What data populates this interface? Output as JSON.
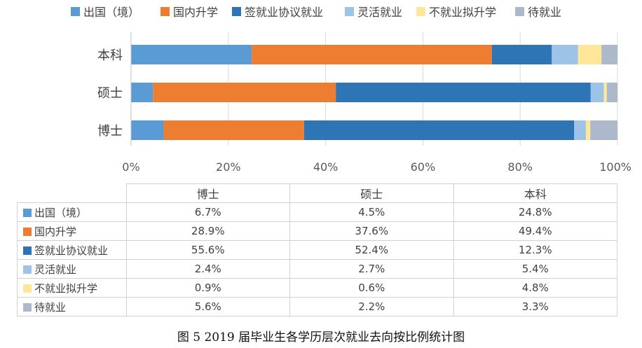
{
  "chart_data": {
    "type": "bar",
    "orientation": "horizontal",
    "stacked": "percent",
    "categories": [
      "本科",
      "硕士",
      "博士"
    ],
    "series": [
      {
        "name": "出国（境）",
        "color": "#5b9bd5",
        "values": [
          24.8,
          4.5,
          6.7
        ],
        "labels": [
          "24.8%",
          "4.5%",
          "6.7%"
        ]
      },
      {
        "name": "国内升学",
        "color": "#ed7d31",
        "values": [
          49.4,
          37.6,
          28.9
        ],
        "labels": [
          "49.4%",
          "37.6%",
          "28.9%"
        ]
      },
      {
        "name": "签就业协议就业",
        "color": "#2e75b6",
        "values": [
          12.3,
          52.4,
          55.6
        ],
        "labels": [
          "12.3%",
          "52.4%",
          "55.6%"
        ]
      },
      {
        "name": "灵活就业",
        "color": "#9dc3e6",
        "values": [
          5.4,
          2.7,
          2.4
        ],
        "labels": [
          "5.4%",
          "2.7%",
          "2.4%"
        ]
      },
      {
        "name": "不就业拟升学",
        "color": "#ffe699",
        "values": [
          4.8,
          0.6,
          0.9
        ],
        "labels": [
          "4.8%",
          "0.6%",
          "0.9%"
        ]
      },
      {
        "name": "待就业",
        "color": "#adb9ca",
        "values": [
          3.3,
          2.2,
          5.6
        ],
        "labels": [
          "3.3%",
          "2.2%",
          "5.6%"
        ]
      }
    ],
    "xlim": [
      0,
      100
    ],
    "x_ticks": [
      "0%",
      "20%",
      "40%",
      "60%",
      "80%",
      "100%"
    ],
    "grid": true,
    "legend_position": "top"
  },
  "table": {
    "columns": [
      "博士",
      "硕士",
      "本科"
    ],
    "rows": [
      {
        "label": "出国（境）",
        "color": "#5b9bd5",
        "cells": [
          "6.7%",
          "4.5%",
          "24.8%"
        ]
      },
      {
        "label": "国内升学",
        "color": "#ed7d31",
        "cells": [
          "28.9%",
          "37.6%",
          "49.4%"
        ]
      },
      {
        "label": "签就业协议就业",
        "color": "#2e75b6",
        "cells": [
          "55.6%",
          "52.4%",
          "12.3%"
        ]
      },
      {
        "label": "灵活就业",
        "color": "#9dc3e6",
        "cells": [
          "2.4%",
          "2.7%",
          "5.4%"
        ]
      },
      {
        "label": "不就业拟升学",
        "color": "#ffe699",
        "cells": [
          "0.9%",
          "0.6%",
          "4.8%"
        ]
      },
      {
        "label": "待就业",
        "color": "#adb9ca",
        "cells": [
          "5.6%",
          "2.2%",
          "3.3%"
        ]
      }
    ]
  },
  "caption": "图 5    2019 届毕业生各学历层次就业去向按比例统计图"
}
